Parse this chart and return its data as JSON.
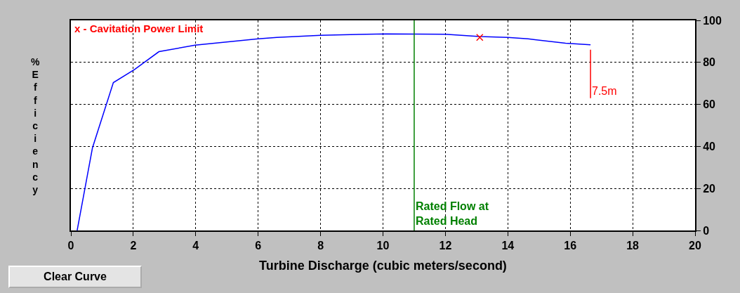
{
  "chart_data": {
    "type": "line",
    "xlabel": "Turbine Discharge (cubic meters/second)",
    "ylabel": "%Efficiency",
    "xlim": [
      0,
      20
    ],
    "xticks": [
      0,
      2,
      4,
      6,
      8,
      10,
      12,
      14,
      16,
      18,
      20
    ],
    "ylim": [
      0,
      100
    ],
    "yticks": [
      0,
      20,
      40,
      60,
      80,
      100
    ],
    "grid": true,
    "series": [
      {
        "marker": "none",
        "color": "#0000ff",
        "x": [
          0.2,
          0.69,
          1.36,
          2.04,
          2.82,
          3.98,
          6.0,
          6.6,
          8.0,
          10.1,
          12.0,
          13.1,
          14.0,
          14.65,
          15.85,
          16.65
        ],
        "values": [
          0,
          39.3,
          70.4,
          76.6,
          85.1,
          88.2,
          91.2,
          91.9,
          92.9,
          93.6,
          93.4,
          92.3,
          91.9,
          91.2,
          89.1,
          88.4
        ]
      },
      {
        "type": "scatter",
        "marker": "cross",
        "color": "#ff0000",
        "x": [
          13.1
        ],
        "values": [
          91.9
        ]
      },
      {
        "type": "line",
        "marker": "none",
        "color": "#ff0000",
        "x": [
          16.65,
          16.65
        ],
        "values": [
          63,
          86
        ]
      }
    ],
    "ref_lines": [
      {
        "axis": "x",
        "value": 11,
        "label": "Rated Flow at\nRated Head",
        "color": "#008000"
      }
    ],
    "annotations": [
      "x - Cavitation Power Limit",
      {
        "text": "7.5m",
        "x": 16.65,
        "y": 63
      },
      "Clear Curve"
    ]
  }
}
